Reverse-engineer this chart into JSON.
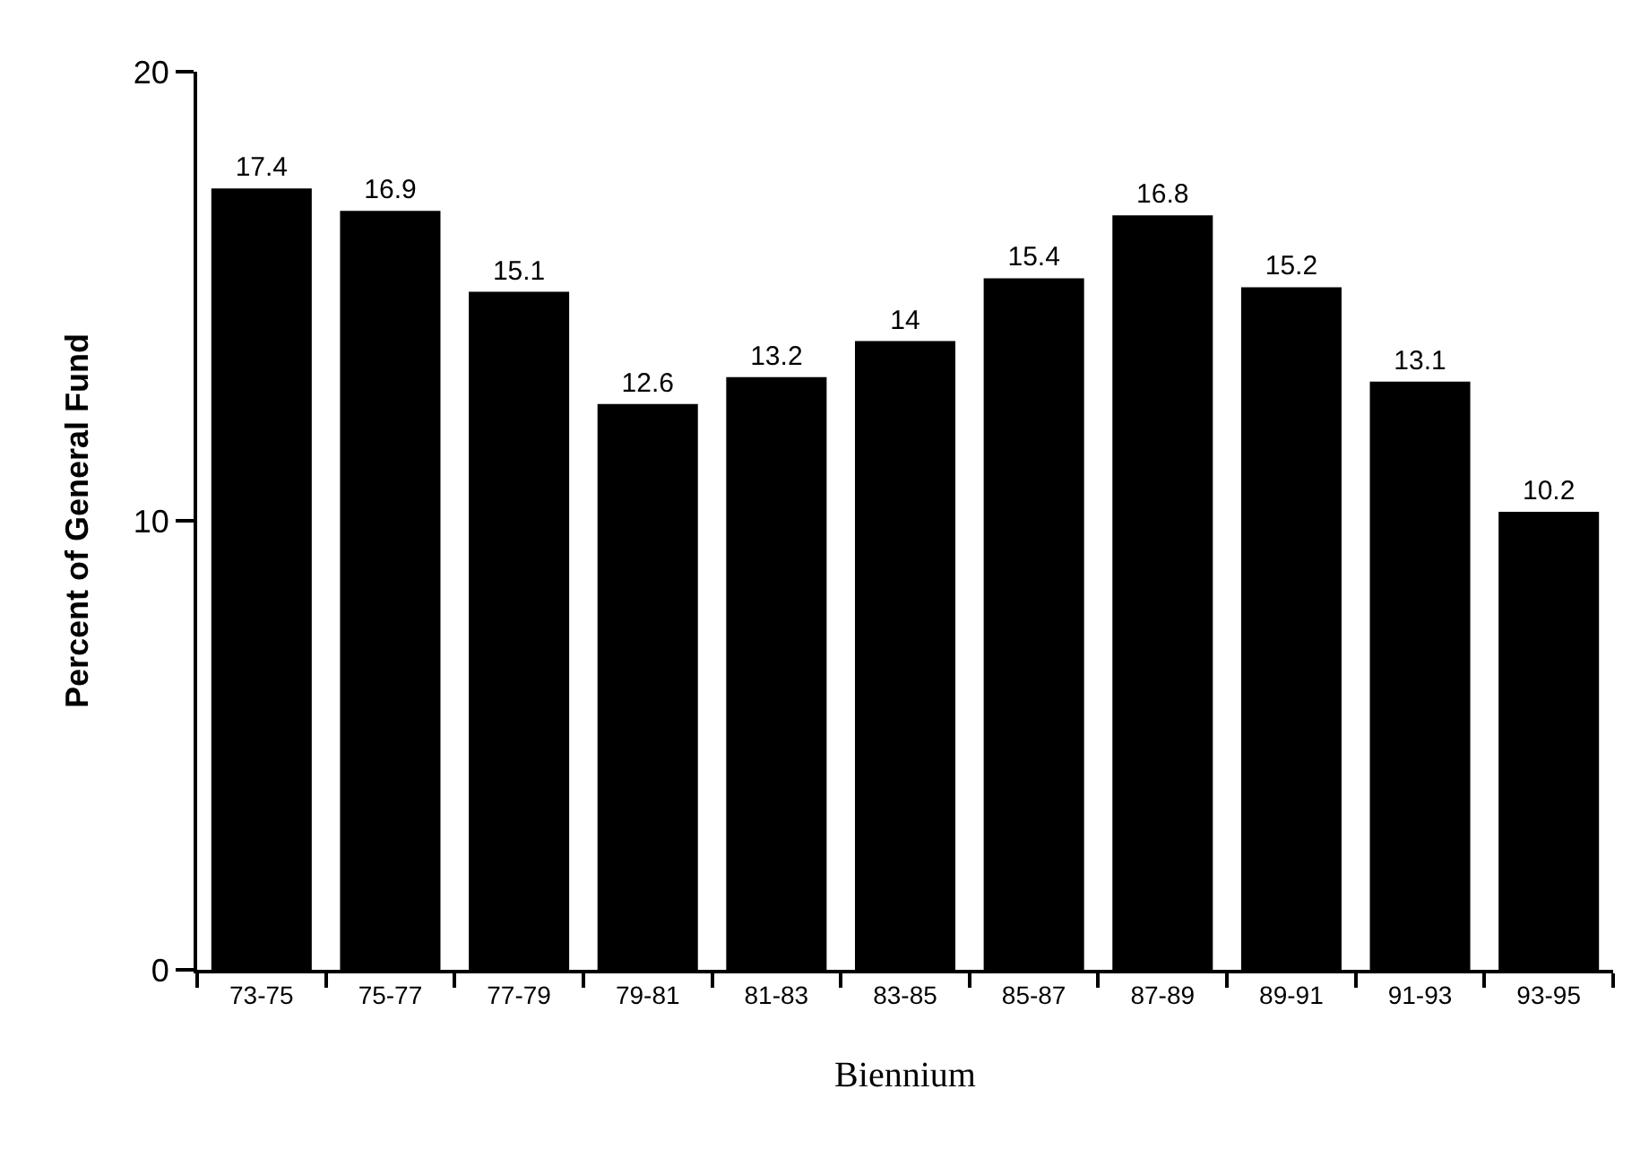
{
  "chart_data": {
    "type": "bar",
    "xlabel": "Biennium",
    "ylabel": "Percent of General Fund",
    "categories": [
      "73-75",
      "75-77",
      "77-79",
      "79-81",
      "81-83",
      "83-85",
      "85-87",
      "87-89",
      "89-91",
      "91-93",
      "93-95"
    ],
    "values": [
      17.4,
      16.9,
      15.1,
      12.6,
      13.2,
      14,
      15.4,
      16.8,
      15.2,
      13.1,
      10.2
    ],
    "color": "#000000",
    "ylim": [
      0,
      20
    ],
    "yticks": [
      0,
      10,
      20
    ],
    "data_labels": true,
    "legend": false
  }
}
